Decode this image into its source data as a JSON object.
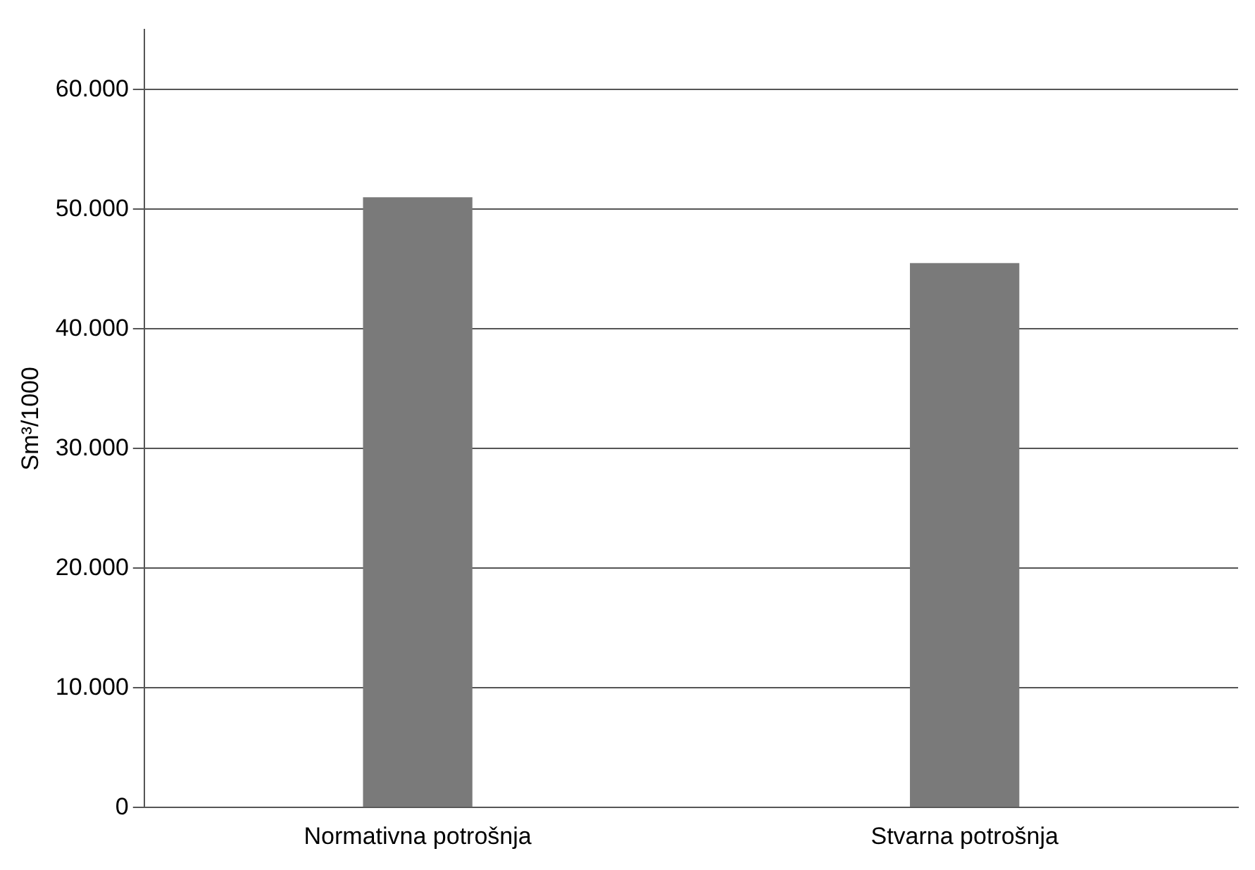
{
  "chart_data": {
    "type": "bar",
    "ylabel": "Sm³/1000",
    "categories": [
      "Normativna potrošnja",
      "Stvarna potrošnja"
    ],
    "values": [
      51000,
      45500
    ],
    "color": "#7a7a7a",
    "ylim": [
      0,
      65000
    ],
    "yticks": [
      {
        "value": 0,
        "label": "0"
      },
      {
        "value": 10000,
        "label": "10.000"
      },
      {
        "value": 20000,
        "label": "20.000"
      },
      {
        "value": 30000,
        "label": "30.000"
      },
      {
        "value": 40000,
        "label": "40.000"
      },
      {
        "value": 50000,
        "label": "50.000"
      },
      {
        "value": 60000,
        "label": "60.000"
      }
    ],
    "grid": "y",
    "legend": false
  }
}
